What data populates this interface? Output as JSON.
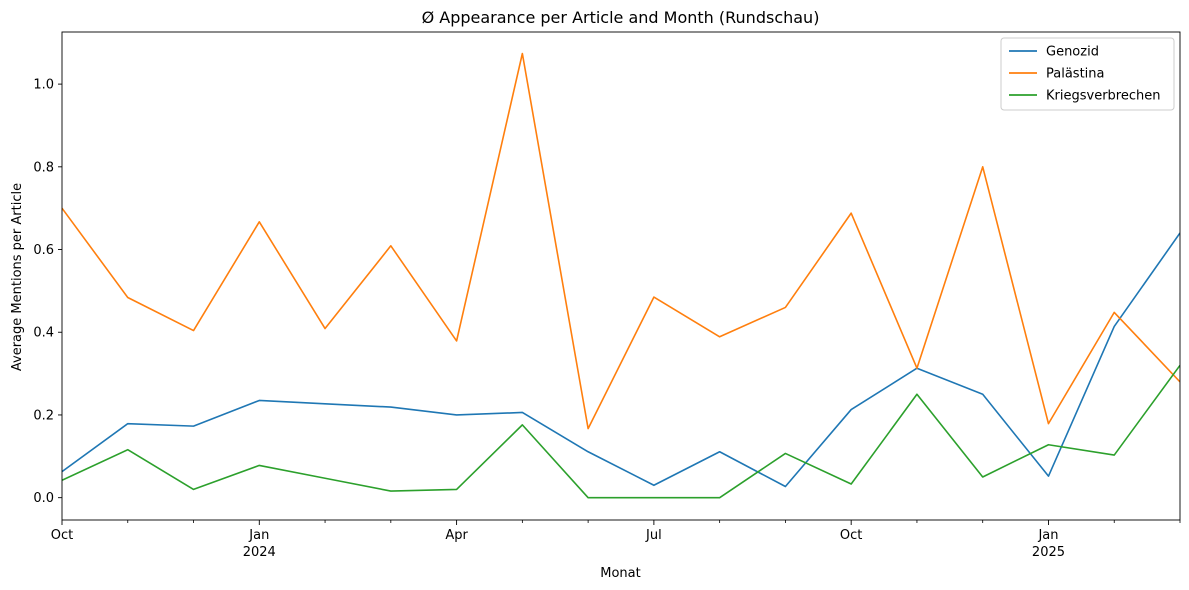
{
  "chart_data": {
    "type": "line",
    "title": "Ø Appearance per Article and Month (Rundschau)",
    "xlabel": "Monat",
    "ylabel": "Average Mentions per Article",
    "x": [
      "2023-10",
      "2023-11",
      "2023-12",
      "2024-01",
      "2024-02",
      "2024-03",
      "2024-04",
      "2024-05",
      "2024-06",
      "2024-07",
      "2024-08",
      "2024-09",
      "2024-10",
      "2024-11",
      "2024-12",
      "2025-01",
      "2025-02",
      "2025-03"
    ],
    "x_ticks": [
      {
        "index": 0,
        "label": "Oct",
        "sub": ""
      },
      {
        "index": 3,
        "label": "Jan",
        "sub": "2024"
      },
      {
        "index": 6,
        "label": "Apr",
        "sub": ""
      },
      {
        "index": 9,
        "label": "Jul",
        "sub": ""
      },
      {
        "index": 12,
        "label": "Oct",
        "sub": ""
      },
      {
        "index": 15,
        "label": "Jan",
        "sub": "2025"
      }
    ],
    "y_ticks": [
      0.0,
      0.2,
      0.4,
      0.6,
      0.8,
      1.0
    ],
    "y_tick_labels": [
      "0.0",
      "0.2",
      "0.4",
      "0.6",
      "0.8",
      "1.0"
    ],
    "ylim": [
      -0.054,
      1.126
    ],
    "grid": false,
    "legend_position": "top-right",
    "series": [
      {
        "name": "Genozid",
        "color": "#1f77b4",
        "values": [
          0.063,
          0.179,
          0.173,
          0.235,
          0.227,
          0.219,
          0.2,
          0.206,
          0.111,
          0.03,
          0.111,
          0.027,
          0.213,
          0.313,
          0.25,
          0.052,
          0.414,
          0.64
        ]
      },
      {
        "name": "Palästina",
        "color": "#ff7f0e",
        "values": [
          0.7,
          0.484,
          0.404,
          0.667,
          0.409,
          0.609,
          0.379,
          1.074,
          0.167,
          0.485,
          0.389,
          0.46,
          0.688,
          0.313,
          0.8,
          0.179,
          0.448,
          0.28
        ]
      },
      {
        "name": "Kriegsverbrechen",
        "color": "#2ca02c",
        "values": [
          0.042,
          0.116,
          0.02,
          0.078,
          0.047,
          0.016,
          0.02,
          0.176,
          0.0,
          0.0,
          0.0,
          0.107,
          0.033,
          0.25,
          0.05,
          0.128,
          0.103,
          0.32
        ]
      }
    ]
  }
}
